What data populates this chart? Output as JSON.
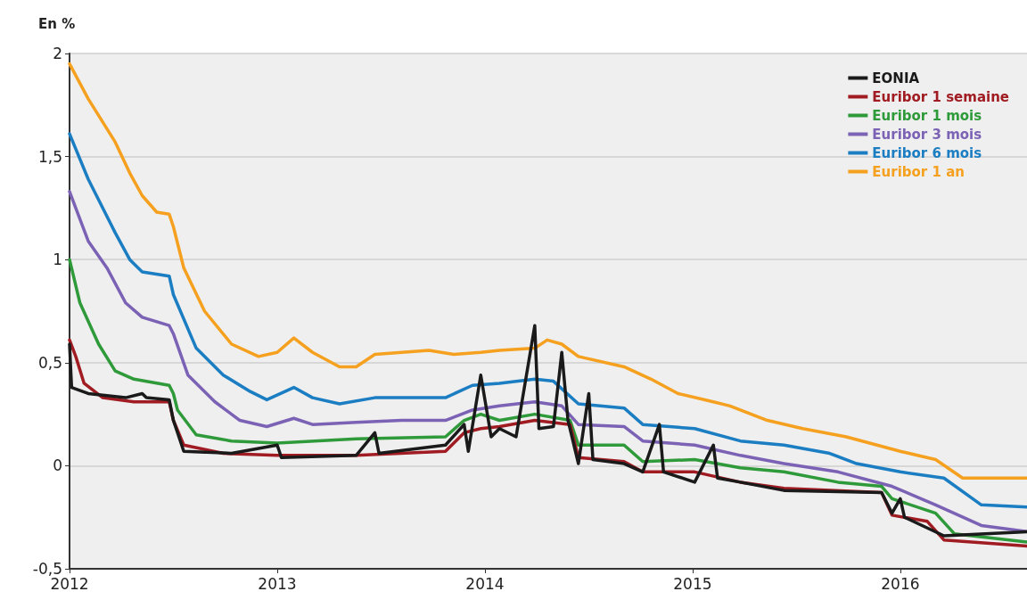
{
  "chart_data": {
    "type": "line",
    "ylabel": "En %",
    "xlim": [
      2012,
      2016.61
    ],
    "xticks": [
      2012,
      2013,
      2014,
      2015,
      2016
    ],
    "ylim": [
      -0.5,
      2
    ],
    "yticks": [
      {
        "value": -0.5,
        "label": "-0,5"
      },
      0,
      {
        "value": 0.5,
        "label": "0,5"
      },
      1,
      {
        "value": 1.5,
        "label": "1,5"
      },
      2
    ],
    "grid": "y",
    "legend": "top right",
    "marker": "none",
    "line_style": "solid",
    "series": [
      {
        "name": "EONIA",
        "color": "#1a1a1a",
        "x": [
          2012,
          2012.01,
          2012.09,
          2012.27,
          2012.35,
          2012.37,
          2012.48,
          2012.5,
          2012.55,
          2012.78,
          2013,
          2013.02,
          2013.38,
          2013.47,
          2013.49,
          2013.81,
          2013.9,
          2013.92,
          2013.98,
          2014.03,
          2014.07,
          2014.15,
          2014.24,
          2014.26,
          2014.33,
          2014.37,
          2014.4,
          2014.45,
          2014.5,
          2014.52,
          2014.67,
          2014.76,
          2014.84,
          2014.86,
          2015.01,
          2015.1,
          2015.12,
          2015.23,
          2015.44,
          2015.91,
          2015.96,
          2016,
          2016.02,
          2016.21,
          2016.61
        ],
        "values": [
          0.59,
          0.38,
          0.35,
          0.33,
          0.35,
          0.33,
          0.32,
          0.22,
          0.07,
          0.06,
          0.1,
          0.04,
          0.05,
          0.16,
          0.06,
          0.1,
          0.2,
          0.07,
          0.44,
          0.14,
          0.18,
          0.14,
          0.68,
          0.18,
          0.19,
          0.55,
          0.22,
          0.01,
          0.35,
          0.03,
          0.01,
          -0.03,
          0.2,
          -0.03,
          -0.08,
          0.1,
          -0.06,
          -0.08,
          -0.12,
          -0.13,
          -0.23,
          -0.16,
          -0.25,
          -0.34,
          -0.32
        ]
      },
      {
        "name": "Euribor 1 semaine",
        "color": "#a01c22",
        "x": [
          2012,
          2012.03,
          2012.07,
          2012.16,
          2012.31,
          2012.48,
          2012.5,
          2012.55,
          2012.74,
          2013,
          2013.38,
          2013.81,
          2013.9,
          2013.98,
          2014.07,
          2014.24,
          2014.41,
          2014.45,
          2014.67,
          2014.76,
          2015.01,
          2015.23,
          2015.44,
          2015.91,
          2015.96,
          2016.13,
          2016.21,
          2016.61
        ],
        "values": [
          0.61,
          0.53,
          0.4,
          0.33,
          0.31,
          0.31,
          0.22,
          0.1,
          0.06,
          0.05,
          0.05,
          0.07,
          0.16,
          0.18,
          0.19,
          0.22,
          0.2,
          0.04,
          0.02,
          -0.03,
          -0.03,
          -0.08,
          -0.11,
          -0.13,
          -0.24,
          -0.27,
          -0.36,
          -0.39
        ]
      },
      {
        "name": "Euribor 1 mois",
        "color": "#2f9a3a",
        "x": [
          2012,
          2012.05,
          2012.14,
          2012.22,
          2012.31,
          2012.48,
          2012.5,
          2012.52,
          2012.61,
          2012.78,
          2013,
          2013.38,
          2013.81,
          2013.9,
          2013.98,
          2014.07,
          2014.24,
          2014.41,
          2014.45,
          2014.67,
          2014.76,
          2015.01,
          2015.23,
          2015.44,
          2015.7,
          2015.91,
          2015.96,
          2016.17,
          2016.26,
          2016.61
        ],
        "values": [
          1,
          0.79,
          0.59,
          0.46,
          0.42,
          0.39,
          0.35,
          0.27,
          0.15,
          0.12,
          0.11,
          0.13,
          0.14,
          0.22,
          0.25,
          0.22,
          0.25,
          0.22,
          0.1,
          0.1,
          0.02,
          0.03,
          -0.01,
          -0.03,
          -0.08,
          -0.1,
          -0.16,
          -0.23,
          -0.33,
          -0.37
        ]
      },
      {
        "name": "Euribor 3 mois",
        "color": "#7b62b5",
        "x": [
          2012,
          2012.09,
          2012.18,
          2012.27,
          2012.35,
          2012.48,
          2012.5,
          2012.57,
          2012.7,
          2012.82,
          2012.95,
          2013.08,
          2013.17,
          2013.38,
          2013.6,
          2013.81,
          2013.94,
          2014.07,
          2014.24,
          2014.37,
          2014.45,
          2014.67,
          2014.76,
          2015.01,
          2015.23,
          2015.44,
          2015.7,
          2015.96,
          2016.17,
          2016.39,
          2016.61
        ],
        "values": [
          1.33,
          1.09,
          0.96,
          0.79,
          0.72,
          0.68,
          0.64,
          0.44,
          0.31,
          0.22,
          0.19,
          0.23,
          0.2,
          0.21,
          0.22,
          0.22,
          0.27,
          0.29,
          0.31,
          0.29,
          0.2,
          0.19,
          0.12,
          0.1,
          0.05,
          0.01,
          -0.03,
          -0.1,
          -0.19,
          -0.29,
          -0.32
        ]
      },
      {
        "name": "Euribor 6 mois",
        "color": "#1b7dc2",
        "x": [
          2012,
          2012.09,
          2012.22,
          2012.29,
          2012.35,
          2012.48,
          2012.5,
          2012.61,
          2012.74,
          2012.87,
          2012.95,
          2013.08,
          2013.17,
          2013.3,
          2013.47,
          2013.6,
          2013.81,
          2013.94,
          2014.07,
          2014.24,
          2014.33,
          2014.45,
          2014.67,
          2014.76,
          2015.01,
          2015.23,
          2015.44,
          2015.66,
          2015.79,
          2016,
          2016.21,
          2016.39,
          2016.61
        ],
        "values": [
          1.61,
          1.39,
          1.13,
          1,
          0.94,
          0.92,
          0.83,
          0.57,
          0.44,
          0.36,
          0.32,
          0.38,
          0.33,
          0.3,
          0.33,
          0.33,
          0.33,
          0.39,
          0.4,
          0.42,
          0.41,
          0.3,
          0.28,
          0.2,
          0.18,
          0.12,
          0.1,
          0.06,
          0.01,
          -0.03,
          -0.06,
          -0.19,
          -0.2
        ]
      },
      {
        "name": "Euribor 1 an",
        "color": "#f5a01e",
        "x": [
          2012,
          2012.09,
          2012.22,
          2012.29,
          2012.35,
          2012.42,
          2012.48,
          2012.5,
          2012.55,
          2012.65,
          2012.78,
          2012.91,
          2013,
          2013.08,
          2013.17,
          2013.3,
          2013.38,
          2013.47,
          2013.6,
          2013.73,
          2013.85,
          2013.98,
          2014.07,
          2014.24,
          2014.3,
          2014.37,
          2014.45,
          2014.67,
          2014.8,
          2014.93,
          2015.1,
          2015.18,
          2015.36,
          2015.53,
          2015.74,
          2016,
          2016.17,
          2016.3,
          2016.47,
          2016.61
        ],
        "values": [
          1.95,
          1.78,
          1.57,
          1.42,
          1.31,
          1.23,
          1.22,
          1.16,
          0.96,
          0.75,
          0.59,
          0.53,
          0.55,
          0.62,
          0.55,
          0.48,
          0.48,
          0.54,
          0.55,
          0.56,
          0.54,
          0.55,
          0.56,
          0.57,
          0.61,
          0.59,
          0.53,
          0.48,
          0.42,
          0.35,
          0.31,
          0.29,
          0.22,
          0.18,
          0.14,
          0.07,
          0.03,
          -0.06,
          -0.06,
          -0.06
        ]
      }
    ]
  }
}
